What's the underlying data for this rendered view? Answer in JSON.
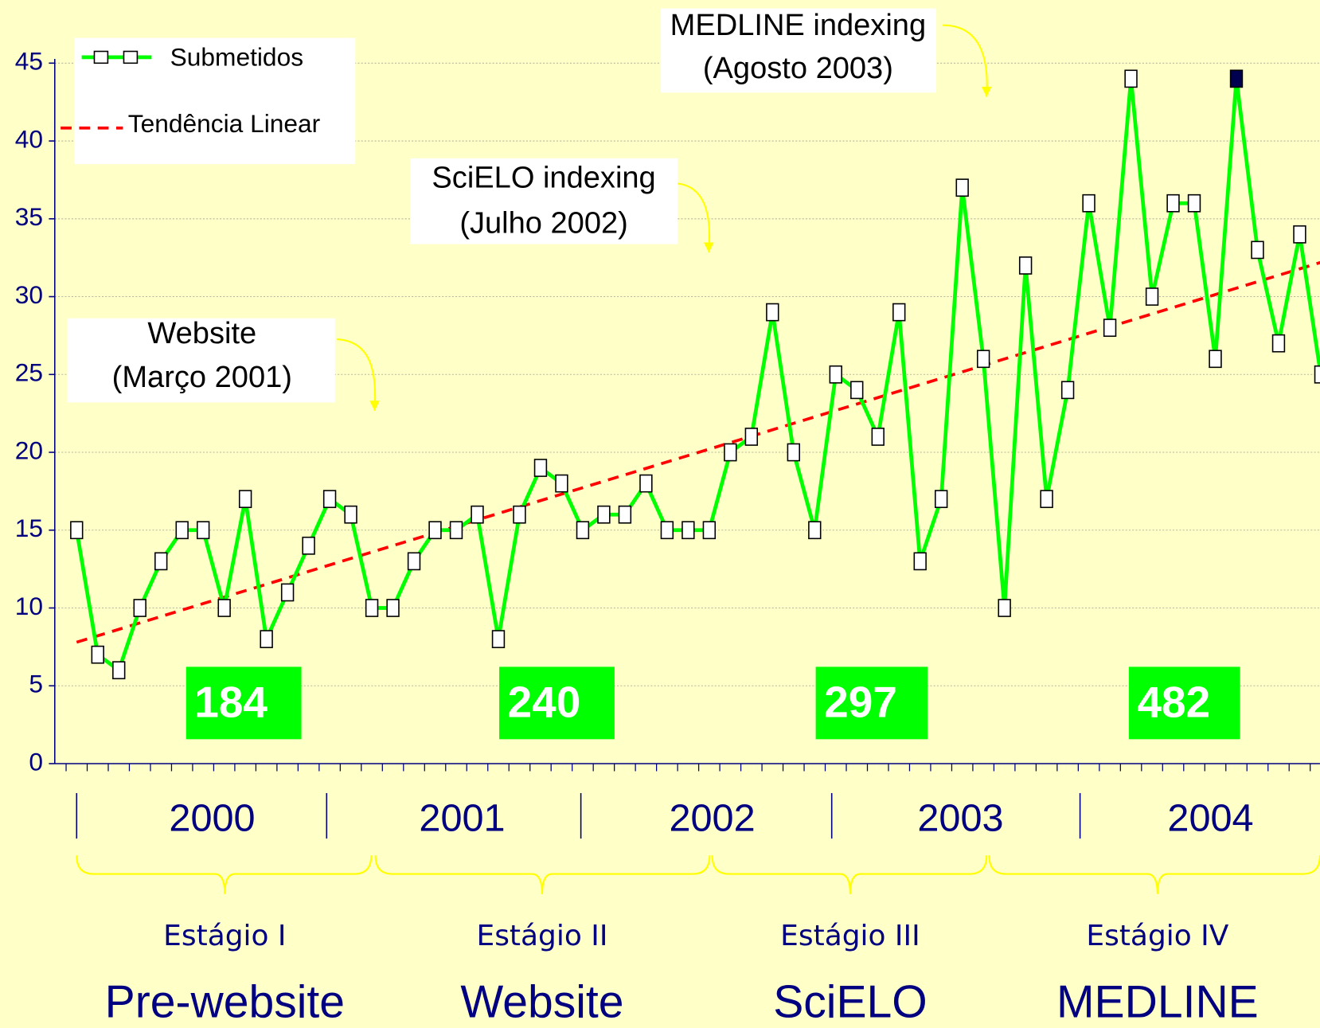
{
  "chart_data": {
    "type": "line",
    "ylim": [
      0,
      45
    ],
    "yticks": [
      0,
      5,
      10,
      15,
      20,
      25,
      30,
      35,
      40,
      45
    ],
    "grid": true,
    "series": [
      {
        "name": "Submetidos",
        "color": "#00ff00",
        "marker_color": "#ffffff",
        "highlight_point": 55,
        "highlight_color": "#000050",
        "values": [
          15,
          7,
          6,
          10,
          13,
          15,
          15,
          10,
          17,
          8,
          11,
          14,
          17,
          16,
          10,
          10,
          13,
          15,
          15,
          16,
          8,
          16,
          19,
          18,
          15,
          16,
          16,
          18,
          15,
          15,
          15,
          20,
          21,
          29,
          20,
          15,
          25,
          24,
          21,
          29,
          13,
          17,
          37,
          26,
          10,
          32,
          17,
          24,
          36,
          28,
          44,
          30,
          36,
          36,
          26,
          44,
          33,
          27,
          34,
          25
        ]
      }
    ],
    "trend": {
      "name": "Tendência Linear",
      "color": "#ff0000",
      "values": [
        7.8,
        32.2
      ]
    },
    "years": [
      "2000",
      "2001",
      "2002",
      "2003",
      "2004"
    ],
    "annotations": [
      {
        "lines": [
          "Website",
          "(Março 2001)"
        ]
      },
      {
        "lines": [
          "SciELO indexing",
          "(Julho 2002)"
        ]
      },
      {
        "lines": [
          "MEDLINE indexing",
          "(Agosto 2003)"
        ]
      }
    ],
    "stage_totals": [
      184,
      240,
      297,
      482
    ],
    "stages": [
      {
        "label": "Estágio I",
        "name": "Pre-website"
      },
      {
        "label": "Estágio II",
        "name": "Website"
      },
      {
        "label": "Estágio III",
        "name": "SciELO"
      },
      {
        "label": "Estágio IV",
        "name": "MEDLINE"
      }
    ]
  }
}
